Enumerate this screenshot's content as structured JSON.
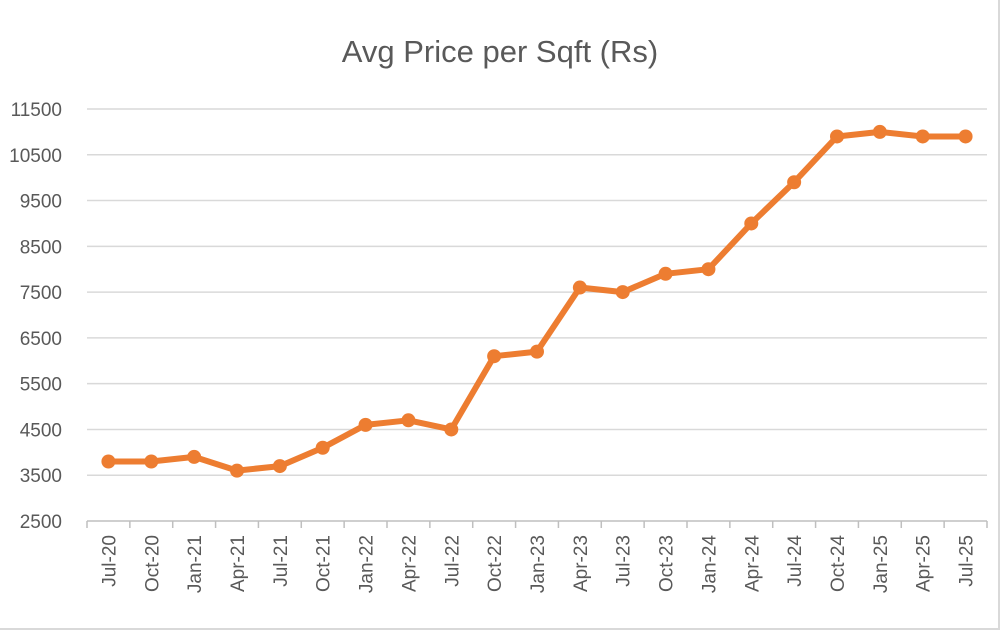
{
  "chart_data": {
    "type": "line",
    "title": "Avg Price per Sqft (Rs)",
    "xlabel": "",
    "ylabel": "",
    "categories": [
      "Jul-20",
      "Oct-20",
      "Jan-21",
      "Apr-21",
      "Jul-21",
      "Oct-21",
      "Jan-22",
      "Apr-22",
      "Jul-22",
      "Oct-22",
      "Jan-23",
      "Apr-23",
      "Jul-23",
      "Oct-23",
      "Jan-24",
      "Apr-24",
      "Jul-24",
      "Oct-24",
      "Jan-25",
      "Apr-25",
      "Jul-25"
    ],
    "series": [
      {
        "values": [
          3800,
          3800,
          3900,
          3600,
          3700,
          4100,
          4600,
          4700,
          4500,
          6100,
          6200,
          7600,
          7500,
          7900,
          8000,
          9000,
          9900,
          10900,
          11000,
          10900,
          10900
        ],
        "color": "#ed7d31"
      }
    ],
    "ylim": [
      2500,
      11500
    ],
    "yticks": [
      2500,
      3500,
      4500,
      5500,
      6500,
      7500,
      8500,
      9500,
      10500,
      11500
    ],
    "grid": true,
    "legend": "none",
    "markers": true
  }
}
